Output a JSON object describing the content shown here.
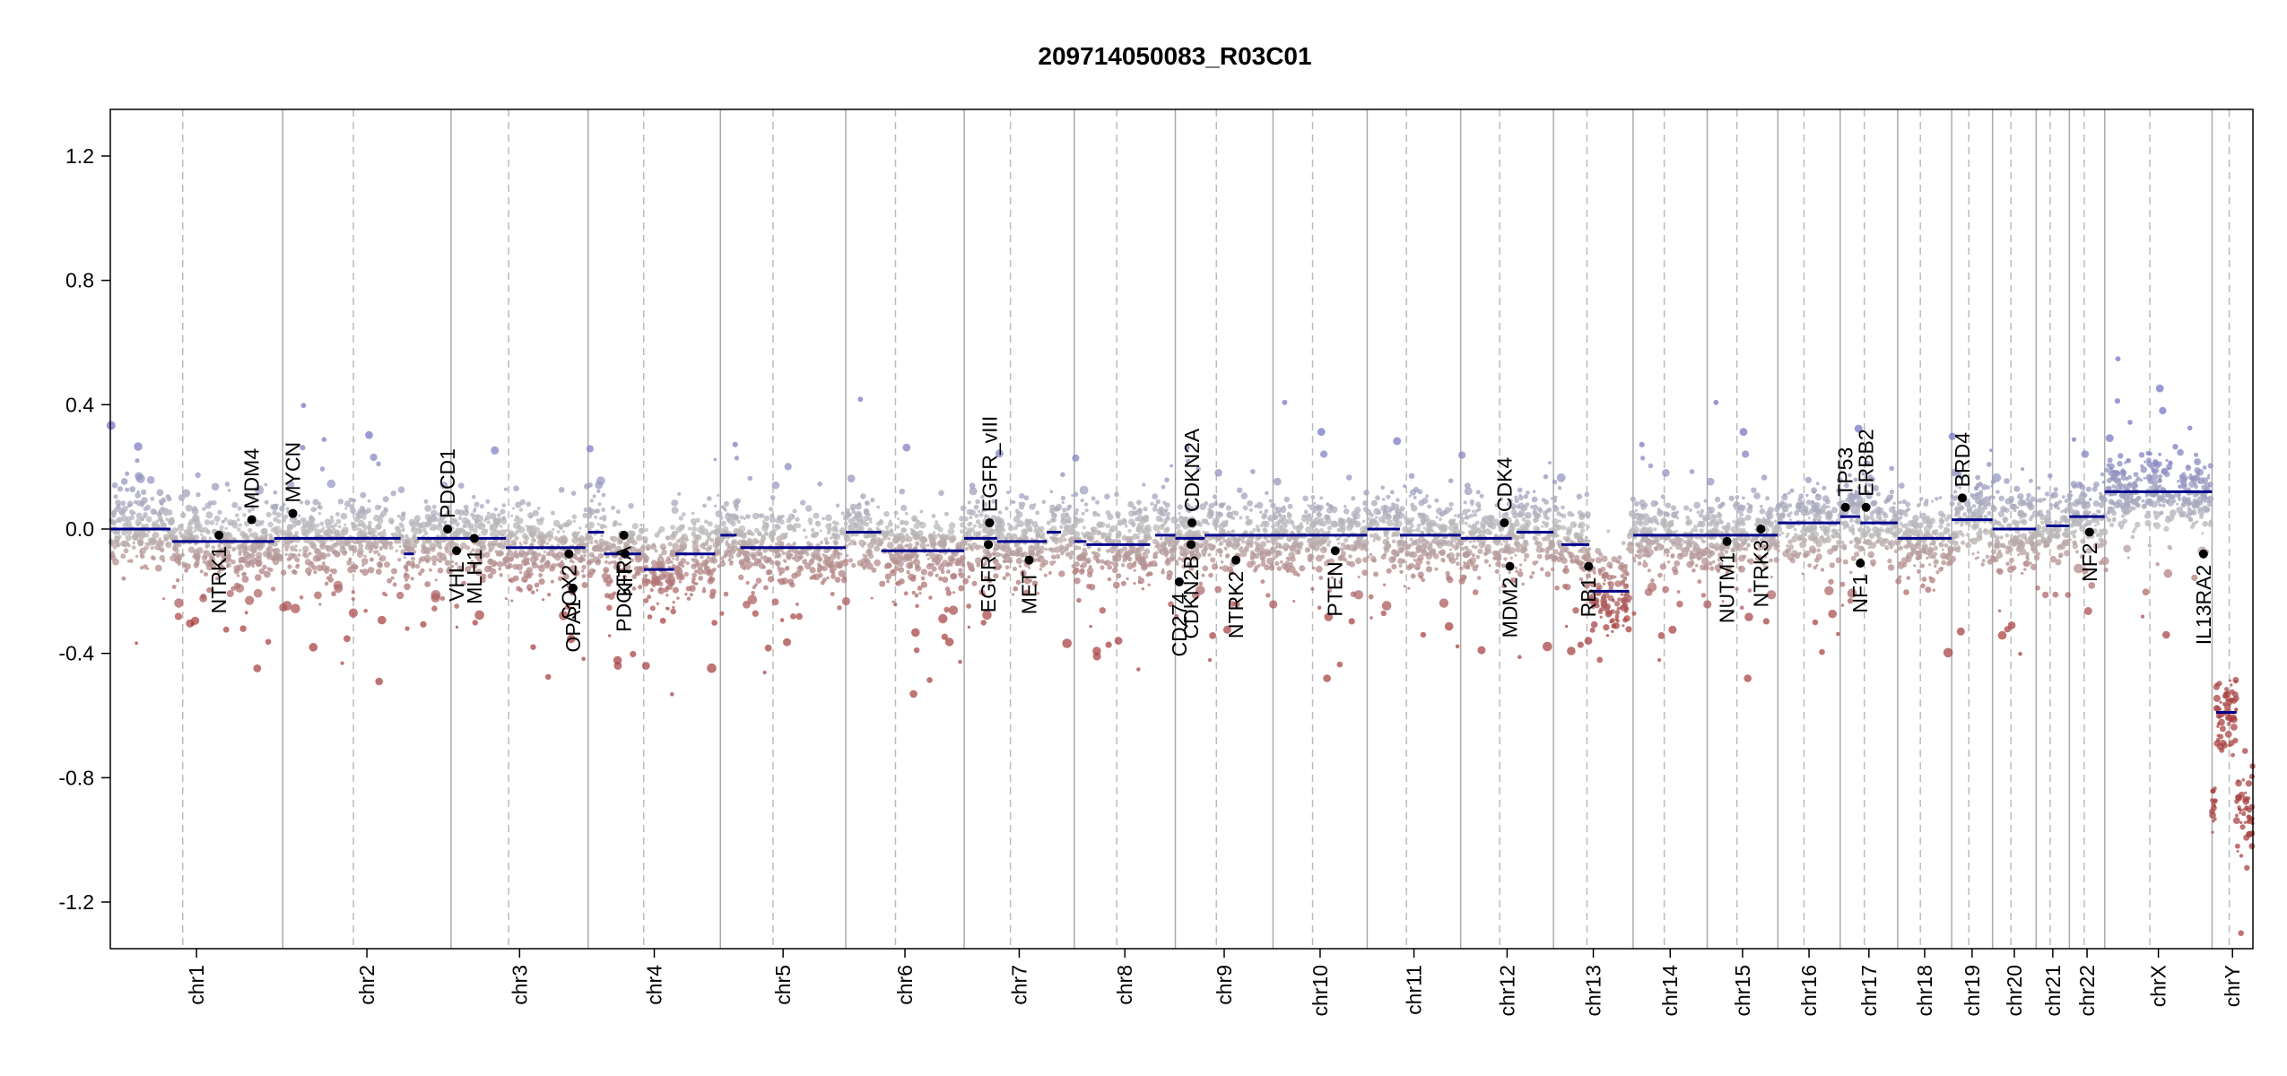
{
  "chart_data": {
    "type": "scatter",
    "title": "209714050083_R03C01",
    "xlabel": "",
    "ylabel": "",
    "ylim": [
      -1.35,
      1.35
    ],
    "yticks": [
      "1.2",
      "0.8",
      "0.4",
      "0.0",
      "-0.4",
      "-0.8",
      "-1.2"
    ],
    "ytick_values": [
      1.2,
      0.8,
      0.4,
      0.0,
      -0.4,
      -0.8,
      -1.2
    ],
    "chromosomes": [
      {
        "name": "chr1",
        "length": 249
      },
      {
        "name": "chr2",
        "length": 243
      },
      {
        "name": "chr3",
        "length": 198
      },
      {
        "name": "chr4",
        "length": 191
      },
      {
        "name": "chr5",
        "length": 181
      },
      {
        "name": "chr6",
        "length": 171
      },
      {
        "name": "chr7",
        "length": 159
      },
      {
        "name": "chr8",
        "length": 146
      },
      {
        "name": "chr9",
        "length": 141
      },
      {
        "name": "chr10",
        "length": 136
      },
      {
        "name": "chr11",
        "length": 135
      },
      {
        "name": "chr12",
        "length": 134
      },
      {
        "name": "chr13",
        "length": 115
      },
      {
        "name": "chr14",
        "length": 107
      },
      {
        "name": "chr15",
        "length": 102
      },
      {
        "name": "chr16",
        "length": 90
      },
      {
        "name": "chr17",
        "length": 83
      },
      {
        "name": "chr18",
        "length": 78
      },
      {
        "name": "chr19",
        "length": 59
      },
      {
        "name": "chr20",
        "length": 63
      },
      {
        "name": "chr21",
        "length": 48
      },
      {
        "name": "chr22",
        "length": 51
      },
      {
        "name": "chrX",
        "length": 155
      },
      {
        "name": "chrY",
        "length": 59
      }
    ],
    "segments": [
      {
        "chr": "chr1",
        "start": 0,
        "end": 0.35,
        "value": 0.0
      },
      {
        "chr": "chr1",
        "start": 0.36,
        "end": 0.95,
        "value": -0.04
      },
      {
        "chr": "chr1",
        "start": 0.95,
        "end": 1.0,
        "value": -0.03
      },
      {
        "chr": "chr2",
        "start": 0,
        "end": 0.7,
        "value": -0.03
      },
      {
        "chr": "chr2",
        "start": 0.72,
        "end": 0.78,
        "value": -0.08
      },
      {
        "chr": "chr2",
        "start": 0.8,
        "end": 1.0,
        "value": -0.03
      },
      {
        "chr": "chr3",
        "start": 0,
        "end": 0.4,
        "value": -0.03
      },
      {
        "chr": "chr3",
        "start": 0.4,
        "end": 0.98,
        "value": -0.06
      },
      {
        "chr": "chr4",
        "start": 0,
        "end": 0.12,
        "value": -0.01
      },
      {
        "chr": "chr4",
        "start": 0.12,
        "end": 0.4,
        "value": -0.08
      },
      {
        "chr": "chr4",
        "start": 0.42,
        "end": 0.65,
        "value": -0.13
      },
      {
        "chr": "chr4",
        "start": 0.66,
        "end": 0.96,
        "value": -0.08
      },
      {
        "chr": "chr5",
        "start": 0,
        "end": 0.13,
        "value": -0.02
      },
      {
        "chr": "chr5",
        "start": 0.16,
        "end": 1.0,
        "value": -0.06
      },
      {
        "chr": "chr6",
        "start": 0,
        "end": 0.3,
        "value": -0.01
      },
      {
        "chr": "chr6",
        "start": 0.3,
        "end": 1.0,
        "value": -0.07
      },
      {
        "chr": "chr7",
        "start": 0,
        "end": 0.3,
        "value": -0.03
      },
      {
        "chr": "chr7",
        "start": 0.3,
        "end": 0.75,
        "value": -0.04
      },
      {
        "chr": "chr7",
        "start": 0.75,
        "end": 0.88,
        "value": -0.01
      },
      {
        "chr": "chr8",
        "start": 0,
        "end": 0.12,
        "value": -0.04
      },
      {
        "chr": "chr8",
        "start": 0.12,
        "end": 0.75,
        "value": -0.05
      },
      {
        "chr": "chr8",
        "start": 0.8,
        "end": 1.0,
        "value": -0.02
      },
      {
        "chr": "chr9",
        "start": 0,
        "end": 0.3,
        "value": -0.03
      },
      {
        "chr": "chr9",
        "start": 0.3,
        "end": 1.0,
        "value": -0.02
      },
      {
        "chr": "chr10",
        "start": 0,
        "end": 1.0,
        "value": -0.02
      },
      {
        "chr": "chr11",
        "start": 0,
        "end": 0.35,
        "value": 0.0
      },
      {
        "chr": "chr11",
        "start": 0.35,
        "end": 1.0,
        "value": -0.02
      },
      {
        "chr": "chr12",
        "start": 0,
        "end": 0.55,
        "value": -0.03
      },
      {
        "chr": "chr12",
        "start": 0.6,
        "end": 1.0,
        "value": -0.01
      },
      {
        "chr": "chr13",
        "start": 0.1,
        "end": 0.45,
        "value": -0.05
      },
      {
        "chr": "chr13",
        "start": 0.45,
        "end": 0.95,
        "value": -0.2
      },
      {
        "chr": "chr14",
        "start": 0,
        "end": 1.0,
        "value": -0.02
      },
      {
        "chr": "chr15",
        "start": 0,
        "end": 1.0,
        "value": -0.02
      },
      {
        "chr": "chr16",
        "start": 0,
        "end": 1.0,
        "value": 0.02
      },
      {
        "chr": "chr17",
        "start": 0,
        "end": 0.35,
        "value": 0.04
      },
      {
        "chr": "chr17",
        "start": 0.35,
        "end": 1.0,
        "value": 0.02
      },
      {
        "chr": "chr18",
        "start": 0,
        "end": 1.0,
        "value": -0.03
      },
      {
        "chr": "chr19",
        "start": 0,
        "end": 1.0,
        "value": 0.03
      },
      {
        "chr": "chr20",
        "start": 0,
        "end": 1.0,
        "value": 0.0
      },
      {
        "chr": "chr21",
        "start": 0.3,
        "end": 1.0,
        "value": 0.01
      },
      {
        "chr": "chr22",
        "start": 0,
        "end": 1.0,
        "value": 0.04
      },
      {
        "chr": "chrX",
        "start": 0,
        "end": 1.0,
        "value": 0.12
      },
      {
        "chr": "chrY",
        "start": 0.1,
        "end": 0.6,
        "value": -0.59
      }
    ],
    "genes": [
      {
        "name": "NTRK1",
        "chr": "chr1",
        "pos": 0.63,
        "value": -0.02,
        "label_side": "below"
      },
      {
        "name": "MDM4",
        "chr": "chr1",
        "pos": 0.82,
        "value": 0.03,
        "label_side": "above"
      },
      {
        "name": "MYCN",
        "chr": "chr2",
        "pos": 0.06,
        "value": 0.05,
        "label_side": "above"
      },
      {
        "name": "PDCD1",
        "chr": "chr2",
        "pos": 0.98,
        "value": 0.0,
        "label_side": "above"
      },
      {
        "name": "VHL",
        "chr": "chr3",
        "pos": 0.04,
        "value": -0.07,
        "label_side": "below"
      },
      {
        "name": "MLH1",
        "chr": "chr3",
        "pos": 0.17,
        "value": -0.03,
        "label_side": "below"
      },
      {
        "name": "SOX2",
        "chr": "chr3",
        "pos": 0.86,
        "value": -0.08,
        "label_side": "below"
      },
      {
        "name": "OPA1",
        "chr": "chr3",
        "pos": 0.89,
        "value": -0.19,
        "label_side": "below"
      },
      {
        "name": "PDGFRA",
        "chr": "chr4",
        "pos": 0.27,
        "value": -0.02,
        "label_side": "below"
      },
      {
        "name": "KIT",
        "chr": "chr4",
        "pos": 0.28,
        "value": -0.08,
        "label_side": "below"
      },
      {
        "name": "EGFR",
        "chr": "chr7",
        "pos": 0.22,
        "value": -0.05,
        "label_side": "below"
      },
      {
        "name": "EGFR_vIII",
        "chr": "chr7",
        "pos": 0.23,
        "value": 0.02,
        "label_side": "above"
      },
      {
        "name": "MET",
        "chr": "chr7",
        "pos": 0.59,
        "value": -0.1,
        "label_side": "below"
      },
      {
        "name": "CD274",
        "chr": "chr9",
        "pos": 0.04,
        "value": -0.17,
        "label_side": "below"
      },
      {
        "name": "CDKN2B",
        "chr": "chr9",
        "pos": 0.16,
        "value": -0.05,
        "label_side": "below"
      },
      {
        "name": "CDKN2A",
        "chr": "chr9",
        "pos": 0.17,
        "value": 0.02,
        "label_side": "above"
      },
      {
        "name": "NTRK2",
        "chr": "chr9",
        "pos": 0.62,
        "value": -0.1,
        "label_side": "below"
      },
      {
        "name": "PTEN",
        "chr": "chr10",
        "pos": 0.66,
        "value": -0.07,
        "label_side": "below"
      },
      {
        "name": "CDK4",
        "chr": "chr12",
        "pos": 0.47,
        "value": 0.02,
        "label_side": "above"
      },
      {
        "name": "MDM2",
        "chr": "chr12",
        "pos": 0.53,
        "value": -0.12,
        "label_side": "below"
      },
      {
        "name": "RB1",
        "chr": "chr13",
        "pos": 0.44,
        "value": -0.12,
        "label_side": "below"
      },
      {
        "name": "NUTM1",
        "chr": "chr15",
        "pos": 0.28,
        "value": -0.04,
        "label_side": "below"
      },
      {
        "name": "NTRK3",
        "chr": "chr15",
        "pos": 0.76,
        "value": 0.0,
        "label_side": "below"
      },
      {
        "name": "TP53",
        "chr": "chr17",
        "pos": 0.09,
        "value": 0.07,
        "label_side": "above"
      },
      {
        "name": "NF1",
        "chr": "chr17",
        "pos": 0.35,
        "value": -0.11,
        "label_side": "below"
      },
      {
        "name": "ERBB2",
        "chr": "chr17",
        "pos": 0.45,
        "value": 0.07,
        "label_side": "above"
      },
      {
        "name": "BRD4",
        "chr": "chr19",
        "pos": 0.26,
        "value": 0.1,
        "label_side": "above"
      },
      {
        "name": "NF2",
        "chr": "chr22",
        "pos": 0.57,
        "value": -0.01,
        "label_side": "below"
      },
      {
        "name": "IL13RA2",
        "chrpos": 0,
        "chr": "chrX",
        "pos": 0.92,
        "value": -0.08,
        "label_side": "below"
      }
    ]
  },
  "colors": {
    "segment": "#00008b",
    "gain": "#7777bb",
    "neutral": "#bbbbbb",
    "loss": "#aa4444",
    "axis": "#000000",
    "chr_boundary": "#aaaaaa",
    "centromere": "#bbbbbb",
    "gene_point": "#000000"
  }
}
